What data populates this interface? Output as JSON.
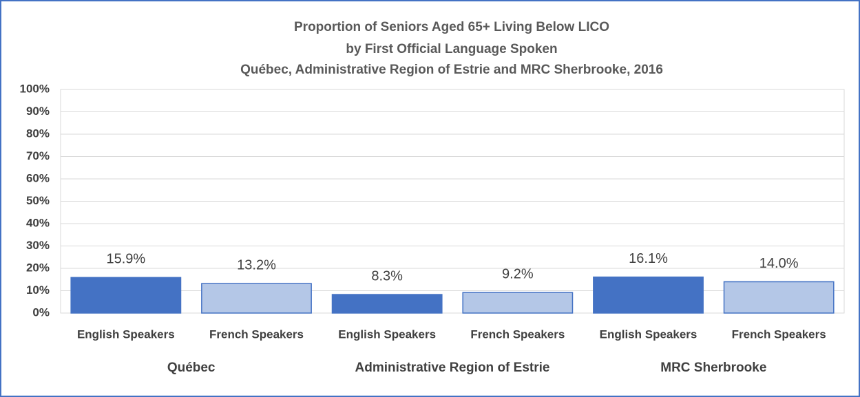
{
  "chart_data": {
    "type": "bar",
    "title": [
      "Proportion of Seniors Aged 65+ Living Below LICO",
      "by First Official Language Spoken",
      "Québec, Administrative Region of Estrie and MRC Sherbrooke, 2016"
    ],
    "categories": [
      "English Speakers",
      "French Speakers",
      "English Speakers",
      "French Speakers",
      "English Speakers",
      "French Speakers"
    ],
    "groups": [
      "Québec",
      "Administrative Region of Estrie",
      "MRC Sherbrooke"
    ],
    "values": [
      15.9,
      13.2,
      8.3,
      9.2,
      16.1,
      14.0
    ],
    "value_labels": [
      "15.9%",
      "13.2%",
      "8.3%",
      "9.2%",
      "16.1%",
      "14.0%"
    ],
    "colors": [
      "#4472c4",
      "#b4c7e7",
      "#4472c4",
      "#b4c7e7",
      "#4472c4",
      "#b4c7e7"
    ],
    "ylim": [
      0,
      100
    ],
    "yticks": [
      {
        "value": 0,
        "label": "0%"
      },
      {
        "value": 10,
        "label": "10%"
      },
      {
        "value": 20,
        "label": "20%"
      },
      {
        "value": 30,
        "label": "30%"
      },
      {
        "value": 40,
        "label": "40%"
      },
      {
        "value": 50,
        "label": "50%"
      },
      {
        "value": 60,
        "label": "60%"
      },
      {
        "value": 70,
        "label": "70%"
      },
      {
        "value": 80,
        "label": "80%"
      },
      {
        "value": 90,
        "label": "90%"
      },
      {
        "value": 100,
        "label": "100%"
      }
    ],
    "grid": true
  }
}
